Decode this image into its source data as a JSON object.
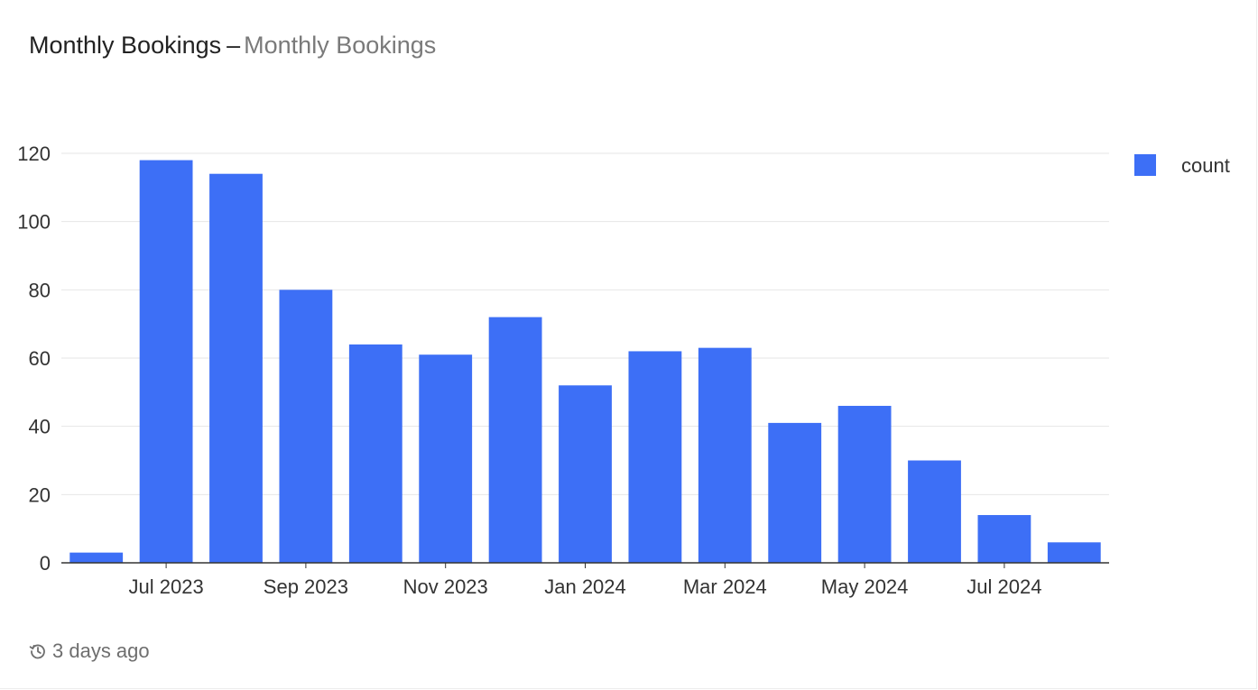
{
  "title": "Monthly Bookings",
  "subtitle": "Monthly Bookings",
  "title_separator": "–",
  "footer": {
    "updated": "3 days ago",
    "icon": "history-icon"
  },
  "colors": {
    "bar": "#3d6ff6",
    "grid": "#e6e6e6",
    "axis": "#333333",
    "text": "#333333"
  },
  "chart_data": {
    "type": "bar",
    "categories": [
      "Jun 2023",
      "Jul 2023",
      "Aug 2023",
      "Sep 2023",
      "Oct 2023",
      "Nov 2023",
      "Dec 2023",
      "Jan 2024",
      "Feb 2024",
      "Mar 2024",
      "Apr 2024",
      "May 2024",
      "Jun 2024",
      "Jul 2024",
      "Aug 2024"
    ],
    "series": [
      {
        "name": "count",
        "values": [
          3,
          118,
          114,
          80,
          64,
          61,
          72,
          52,
          62,
          63,
          41,
          46,
          30,
          14,
          6
        ]
      }
    ],
    "x_tick_labels": [
      "Jul 2023",
      "Sep 2023",
      "Nov 2023",
      "Jan 2024",
      "Mar 2024",
      "May 2024",
      "Jul 2024"
    ],
    "y_ticks": [
      0,
      20,
      40,
      60,
      80,
      100,
      120
    ],
    "ylim": [
      0,
      120
    ],
    "grid": true,
    "legend_position": "right"
  }
}
